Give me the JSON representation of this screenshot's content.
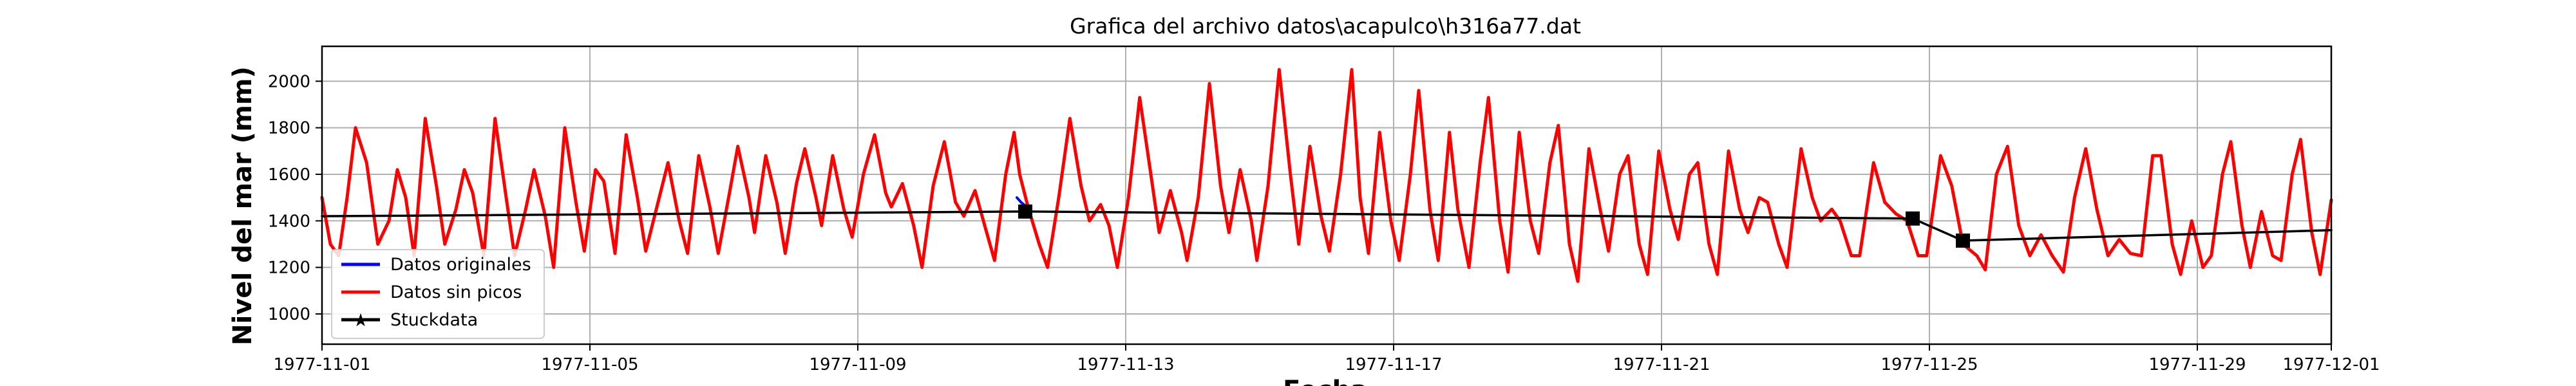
{
  "chart_data": {
    "type": "line",
    "title": "Grafica del archivo datos\\acapulco\\h316a77.dat",
    "xlabel": "Fecha",
    "ylabel": "Nivel del mar (mm)",
    "xlim": [
      "1977-11-01",
      "1977-12-01"
    ],
    "ylim": [
      870,
      2150
    ],
    "x_ticks": [
      "1977-11-01",
      "1977-11-05",
      "1977-11-09",
      "1977-11-13",
      "1977-11-17",
      "1977-11-21",
      "1977-11-25",
      "1977-11-29",
      "1977-12-01"
    ],
    "y_ticks": [
      1000,
      1200,
      1400,
      1600,
      1800,
      2000
    ],
    "grid": true,
    "legend_position": "lower-left",
    "series": [
      {
        "name": "Datos originales",
        "color": "#0000ff",
        "style": "line",
        "points": [
          {
            "x": "1977-11-11T09:00",
            "y": 1500
          },
          {
            "x": "1977-11-11T10:30",
            "y": 1480
          },
          {
            "x": "1977-11-11T12:00",
            "y": 1465
          },
          {
            "x": "1977-11-11T13:30",
            "y": 1455
          }
        ]
      },
      {
        "name": "Datos sin picos",
        "color": "#ff0000",
        "style": "line",
        "points": [
          {
            "x": "1977-11-01T00:00",
            "y": 1500
          },
          {
            "x": "1977-11-01T03:00",
            "y": 1300
          },
          {
            "x": "1977-11-01T06:00",
            "y": 1250
          },
          {
            "x": "1977-11-01T09:00",
            "y": 1500
          },
          {
            "x": "1977-11-01T12:00",
            "y": 1800
          },
          {
            "x": "1977-11-01T16:00",
            "y": 1650
          },
          {
            "x": "1977-11-01T20:00",
            "y": 1300
          },
          {
            "x": "1977-11-02T00:00",
            "y": 1400
          },
          {
            "x": "1977-11-02T03:00",
            "y": 1620
          },
          {
            "x": "1977-11-02T06:00",
            "y": 1500
          },
          {
            "x": "1977-11-02T09:00",
            "y": 1250
          },
          {
            "x": "1977-11-02T13:00",
            "y": 1840
          },
          {
            "x": "1977-11-02T17:00",
            "y": 1550
          },
          {
            "x": "1977-11-02T20:00",
            "y": 1300
          },
          {
            "x": "1977-11-03T00:00",
            "y": 1450
          },
          {
            "x": "1977-11-03T03:00",
            "y": 1620
          },
          {
            "x": "1977-11-03T06:00",
            "y": 1520
          },
          {
            "x": "1977-11-03T10:00",
            "y": 1250
          },
          {
            "x": "1977-11-03T14:00",
            "y": 1840
          },
          {
            "x": "1977-11-03T18:00",
            "y": 1500
          },
          {
            "x": "1977-11-03T21:00",
            "y": 1250
          },
          {
            "x": "1977-11-04T01:00",
            "y": 1450
          },
          {
            "x": "1977-11-04T04:00",
            "y": 1620
          },
          {
            "x": "1977-11-04T08:00",
            "y": 1420
          },
          {
            "x": "1977-11-04T11:00",
            "y": 1200
          },
          {
            "x": "1977-11-04T15:00",
            "y": 1800
          },
          {
            "x": "1977-11-04T19:00",
            "y": 1480
          },
          {
            "x": "1977-11-04T22:00",
            "y": 1270
          },
          {
            "x": "1977-11-05T02:00",
            "y": 1620
          },
          {
            "x": "1977-11-05T05:00",
            "y": 1570
          },
          {
            "x": "1977-11-05T09:00",
            "y": 1260
          },
          {
            "x": "1977-11-05T13:00",
            "y": 1770
          },
          {
            "x": "1977-11-05T17:00",
            "y": 1500
          },
          {
            "x": "1977-11-05T20:00",
            "y": 1270
          },
          {
            "x": "1977-11-06T00:00",
            "y": 1460
          },
          {
            "x": "1977-11-06T04:00",
            "y": 1650
          },
          {
            "x": "1977-11-06T08:00",
            "y": 1400
          },
          {
            "x": "1977-11-06T11:00",
            "y": 1260
          },
          {
            "x": "1977-11-06T15:00",
            "y": 1680
          },
          {
            "x": "1977-11-06T19:00",
            "y": 1460
          },
          {
            "x": "1977-11-06T22:00",
            "y": 1260
          },
          {
            "x": "1977-11-07T02:00",
            "y": 1520
          },
          {
            "x": "1977-11-07T05:00",
            "y": 1720
          },
          {
            "x": "1977-11-07T09:00",
            "y": 1500
          },
          {
            "x": "1977-11-07T11:00",
            "y": 1350
          },
          {
            "x": "1977-11-07T15:00",
            "y": 1680
          },
          {
            "x": "1977-11-07T19:00",
            "y": 1480
          },
          {
            "x": "1977-11-07T22:00",
            "y": 1260
          },
          {
            "x": "1977-11-08T02:00",
            "y": 1560
          },
          {
            "x": "1977-11-08T05:00",
            "y": 1710
          },
          {
            "x": "1977-11-08T09:00",
            "y": 1500
          },
          {
            "x": "1977-11-08T11:00",
            "y": 1380
          },
          {
            "x": "1977-11-08T15:00",
            "y": 1680
          },
          {
            "x": "1977-11-08T19:00",
            "y": 1450
          },
          {
            "x": "1977-11-08T22:00",
            "y": 1330
          },
          {
            "x": "1977-11-09T02:00",
            "y": 1600
          },
          {
            "x": "1977-11-09T06:00",
            "y": 1770
          },
          {
            "x": "1977-11-09T10:00",
            "y": 1520
          },
          {
            "x": "1977-11-09T12:00",
            "y": 1460
          },
          {
            "x": "1977-11-09T16:00",
            "y": 1560
          },
          {
            "x": "1977-11-09T20:00",
            "y": 1380
          },
          {
            "x": "1977-11-09T23:00",
            "y": 1200
          },
          {
            "x": "1977-11-10T03:00",
            "y": 1550
          },
          {
            "x": "1977-11-10T07:00",
            "y": 1740
          },
          {
            "x": "1977-11-10T11:00",
            "y": 1480
          },
          {
            "x": "1977-11-10T14:00",
            "y": 1420
          },
          {
            "x": "1977-11-10T18:00",
            "y": 1530
          },
          {
            "x": "1977-11-10T21:00",
            "y": 1400
          },
          {
            "x": "1977-11-11T01:00",
            "y": 1230
          },
          {
            "x": "1977-11-11T05:00",
            "y": 1600
          },
          {
            "x": "1977-11-11T08:00",
            "y": 1780
          },
          {
            "x": "1977-11-11T10:00",
            "y": 1600
          },
          {
            "x": "1977-11-11T13:00",
            "y": 1460
          },
          {
            "x": "1977-11-11T17:00",
            "y": 1300
          },
          {
            "x": "1977-11-11T20:00",
            "y": 1200
          },
          {
            "x": "1977-11-12T00:00",
            "y": 1500
          },
          {
            "x": "1977-11-12T04:00",
            "y": 1840
          },
          {
            "x": "1977-11-12T08:00",
            "y": 1550
          },
          {
            "x": "1977-11-12T11:00",
            "y": 1400
          },
          {
            "x": "1977-11-12T15:00",
            "y": 1470
          },
          {
            "x": "1977-11-12T18:00",
            "y": 1380
          },
          {
            "x": "1977-11-12T21:00",
            "y": 1200
          },
          {
            "x": "1977-11-13T01:00",
            "y": 1500
          },
          {
            "x": "1977-11-13T05:00",
            "y": 1930
          },
          {
            "x": "1977-11-13T09:00",
            "y": 1600
          },
          {
            "x": "1977-11-13T12:00",
            "y": 1350
          },
          {
            "x": "1977-11-13T16:00",
            "y": 1530
          },
          {
            "x": "1977-11-13T20:00",
            "y": 1350
          },
          {
            "x": "1977-11-13T22:00",
            "y": 1230
          },
          {
            "x": "1977-11-14T02:00",
            "y": 1500
          },
          {
            "x": "1977-11-14T06:00",
            "y": 1990
          },
          {
            "x": "1977-11-14T10:00",
            "y": 1550
          },
          {
            "x": "1977-11-14T13:00",
            "y": 1350
          },
          {
            "x": "1977-11-14T17:00",
            "y": 1620
          },
          {
            "x": "1977-11-14T21:00",
            "y": 1400
          },
          {
            "x": "1977-11-14T23:00",
            "y": 1230
          },
          {
            "x": "1977-11-15T03:00",
            "y": 1550
          },
          {
            "x": "1977-11-15T07:00",
            "y": 2050
          },
          {
            "x": "1977-11-15T11:00",
            "y": 1600
          },
          {
            "x": "1977-11-15T14:00",
            "y": 1300
          },
          {
            "x": "1977-11-15T18:00",
            "y": 1720
          },
          {
            "x": "1977-11-15T22:00",
            "y": 1420
          },
          {
            "x": "1977-11-16T01:00",
            "y": 1270
          },
          {
            "x": "1977-11-16T05:00",
            "y": 1600
          },
          {
            "x": "1977-11-16T09:00",
            "y": 2050
          },
          {
            "x": "1977-11-16T12:00",
            "y": 1500
          },
          {
            "x": "1977-11-16T15:00",
            "y": 1260
          },
          {
            "x": "1977-11-16T19:00",
            "y": 1780
          },
          {
            "x": "1977-11-16T23:00",
            "y": 1400
          },
          {
            "x": "1977-11-17T02:00",
            "y": 1230
          },
          {
            "x": "1977-11-17T06:00",
            "y": 1600
          },
          {
            "x": "1977-11-17T09:00",
            "y": 1960
          },
          {
            "x": "1977-11-17T13:00",
            "y": 1450
          },
          {
            "x": "1977-11-17T16:00",
            "y": 1230
          },
          {
            "x": "1977-11-17T20:00",
            "y": 1780
          },
          {
            "x": "1977-11-17T23:00",
            "y": 1450
          },
          {
            "x": "1977-11-18T03:00",
            "y": 1200
          },
          {
            "x": "1977-11-18T07:00",
            "y": 1650
          },
          {
            "x": "1977-11-18T10:00",
            "y": 1930
          },
          {
            "x": "1977-11-18T14:00",
            "y": 1400
          },
          {
            "x": "1977-11-18T17:00",
            "y": 1180
          },
          {
            "x": "1977-11-18T21:00",
            "y": 1780
          },
          {
            "x": "1977-11-19T01:00",
            "y": 1400
          },
          {
            "x": "1977-11-19T04:00",
            "y": 1260
          },
          {
            "x": "1977-11-19T08:00",
            "y": 1650
          },
          {
            "x": "1977-11-19T11:00",
            "y": 1810
          },
          {
            "x": "1977-11-19T15:00",
            "y": 1300
          },
          {
            "x": "1977-11-19T18:00",
            "y": 1140
          },
          {
            "x": "1977-11-19T22:00",
            "y": 1710
          },
          {
            "x": "1977-11-20T02:00",
            "y": 1450
          },
          {
            "x": "1977-11-20T05:00",
            "y": 1270
          },
          {
            "x": "1977-11-20T09:00",
            "y": 1600
          },
          {
            "x": "1977-11-20T12:00",
            "y": 1680
          },
          {
            "x": "1977-11-20T16:00",
            "y": 1300
          },
          {
            "x": "1977-11-20T19:00",
            "y": 1170
          },
          {
            "x": "1977-11-20T23:00",
            "y": 1700
          },
          {
            "x": "1977-11-21T03:00",
            "y": 1450
          },
          {
            "x": "1977-11-21T06:00",
            "y": 1320
          },
          {
            "x": "1977-11-21T10:00",
            "y": 1600
          },
          {
            "x": "1977-11-21T13:00",
            "y": 1650
          },
          {
            "x": "1977-11-21T17:00",
            "y": 1300
          },
          {
            "x": "1977-11-21T20:00",
            "y": 1170
          },
          {
            "x": "1977-11-22T00:00",
            "y": 1700
          },
          {
            "x": "1977-11-22T04:00",
            "y": 1450
          },
          {
            "x": "1977-11-22T07:00",
            "y": 1350
          },
          {
            "x": "1977-11-22T11:00",
            "y": 1500
          },
          {
            "x": "1977-11-22T14:00",
            "y": 1480
          },
          {
            "x": "1977-11-22T18:00",
            "y": 1300
          },
          {
            "x": "1977-11-22T21:00",
            "y": 1200
          },
          {
            "x": "1977-11-23T02:00",
            "y": 1710
          },
          {
            "x": "1977-11-23T06:00",
            "y": 1500
          },
          {
            "x": "1977-11-23T09:00",
            "y": 1400
          },
          {
            "x": "1977-11-23T13:00",
            "y": 1450
          },
          {
            "x": "1977-11-23T16:00",
            "y": 1400
          },
          {
            "x": "1977-11-23T20:00",
            "y": 1250
          },
          {
            "x": "1977-11-23T23:00",
            "y": 1250
          },
          {
            "x": "1977-11-24T04:00",
            "y": 1650
          },
          {
            "x": "1977-11-24T08:00",
            "y": 1480
          },
          {
            "x": "1977-11-24T12:00",
            "y": 1430
          },
          {
            "x": "1977-11-24T16:00",
            "y": 1400
          },
          {
            "x": "1977-11-24T20:00",
            "y": 1250
          },
          {
            "x": "1977-11-24T23:00",
            "y": 1250
          },
          {
            "x": "1977-11-25T04:00",
            "y": 1680
          },
          {
            "x": "1977-11-25T08:00",
            "y": 1550
          },
          {
            "x": "1977-11-25T12:00",
            "y": 1300
          },
          {
            "x": "1977-11-25T17:00",
            "y": 1250
          },
          {
            "x": "1977-11-25T20:00",
            "y": 1190
          },
          {
            "x": "1977-11-26T00:00",
            "y": 1600
          },
          {
            "x": "1977-11-26T04:00",
            "y": 1720
          },
          {
            "x": "1977-11-26T08:00",
            "y": 1380
          },
          {
            "x": "1977-11-26T12:00",
            "y": 1250
          },
          {
            "x": "1977-11-26T16:00",
            "y": 1340
          },
          {
            "x": "1977-11-26T20:00",
            "y": 1250
          },
          {
            "x": "1977-11-27T00:00",
            "y": 1180
          },
          {
            "x": "1977-11-27T04:00",
            "y": 1500
          },
          {
            "x": "1977-11-27T08:00",
            "y": 1710
          },
          {
            "x": "1977-11-27T12:00",
            "y": 1450
          },
          {
            "x": "1977-11-27T16:00",
            "y": 1250
          },
          {
            "x": "1977-11-27T20:00",
            "y": 1320
          },
          {
            "x": "1977-11-28T00:00",
            "y": 1260
          },
          {
            "x": "1977-11-28T04:00",
            "y": 1250
          },
          {
            "x": "1977-11-28T08:00",
            "y": 1680
          },
          {
            "x": "1977-11-28T11:00",
            "y": 1680
          },
          {
            "x": "1977-11-28T15:00",
            "y": 1300
          },
          {
            "x": "1977-11-28T18:00",
            "y": 1170
          },
          {
            "x": "1977-11-28T22:00",
            "y": 1400
          },
          {
            "x": "1977-11-29T02:00",
            "y": 1200
          },
          {
            "x": "1977-11-29T05:00",
            "y": 1250
          },
          {
            "x": "1977-11-29T09:00",
            "y": 1600
          },
          {
            "x": "1977-11-29T12:00",
            "y": 1740
          },
          {
            "x": "1977-11-29T16:00",
            "y": 1380
          },
          {
            "x": "1977-11-29T19:00",
            "y": 1200
          },
          {
            "x": "1977-11-29T23:00",
            "y": 1440
          },
          {
            "x": "1977-11-30T03:00",
            "y": 1250
          },
          {
            "x": "1977-11-30T06:00",
            "y": 1230
          },
          {
            "x": "1977-11-30T10:00",
            "y": 1600
          },
          {
            "x": "1977-11-30T13:00",
            "y": 1750
          },
          {
            "x": "1977-11-30T17:00",
            "y": 1350
          },
          {
            "x": "1977-11-30T20:00",
            "y": 1170
          },
          {
            "x": "1977-12-01T00:00",
            "y": 1490
          }
        ]
      },
      {
        "name": "Stuckdata",
        "color": "#000000",
        "style": "line-star",
        "points": [
          {
            "x": "1977-11-01T00:00",
            "y": 1420
          },
          {
            "x": "1977-11-11T12:00",
            "y": 1440
          },
          {
            "x": "1977-11-24T18:00",
            "y": 1410
          },
          {
            "x": "1977-11-25T12:00",
            "y": 1315
          },
          {
            "x": "1977-12-01T00:00",
            "y": 1360
          }
        ],
        "markers": [
          {
            "x": "1977-11-11T12:00",
            "y": 1440
          },
          {
            "x": "1977-11-24T18:00",
            "y": 1410
          },
          {
            "x": "1977-11-25T12:00",
            "y": 1315
          }
        ]
      }
    ]
  }
}
